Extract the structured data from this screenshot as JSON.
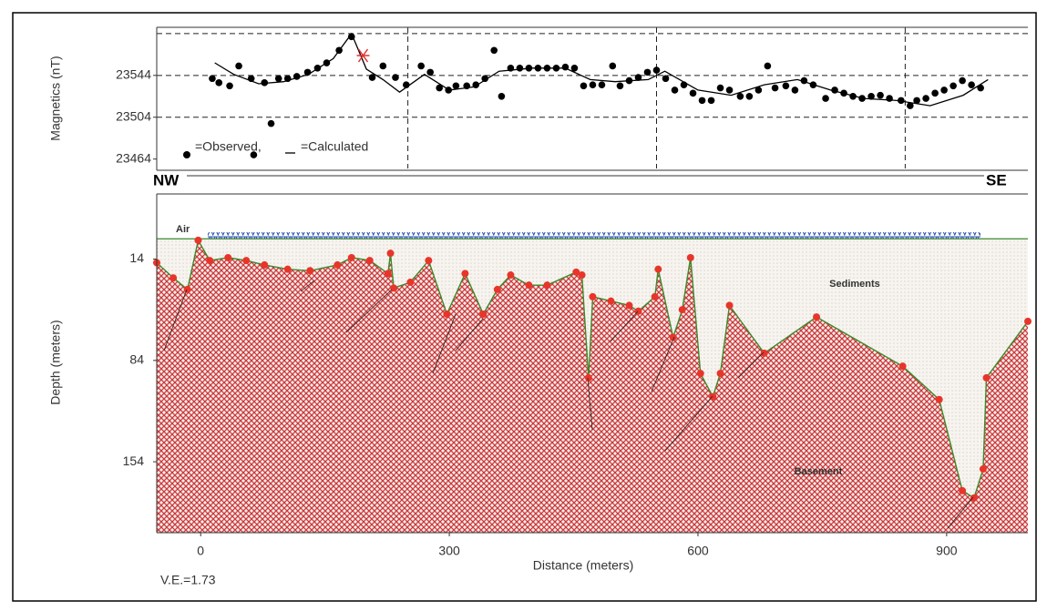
{
  "chart_data": [
    {
      "type": "scatter",
      "ylabel": "Magnetics (nT)",
      "xlim": [
        -53,
        998
      ],
      "ylim": [
        23455,
        23590
      ],
      "yticks": [
        23464,
        23504,
        23544
      ],
      "ygrid": [
        23504,
        23544,
        23584
      ],
      "xgrid": [
        250,
        550,
        850
      ],
      "series": [
        {
          "name": "=Observed,",
          "color": "#000000",
          "marker": "dot",
          "x": [
            14,
            22,
            35,
            46,
            61,
            64,
            77,
            85,
            94,
            105,
            116,
            129,
            141,
            152,
            167,
            182,
            207,
            220,
            235,
            248,
            266,
            277,
            288,
            299,
            308,
            321,
            332,
            343,
            354,
            363,
            374,
            385,
            396,
            407,
            418,
            429,
            440,
            451,
            462,
            473,
            484,
            497,
            506,
            517,
            528,
            539,
            550,
            561,
            572,
            583,
            594,
            605,
            616,
            627,
            638,
            651,
            662,
            673,
            684,
            693,
            706,
            717,
            728,
            739,
            754,
            765,
            776,
            787,
            798,
            809,
            820,
            831,
            845,
            856,
            864,
            875,
            886,
            897,
            908,
            919,
            930,
            941
          ],
          "values": [
            23541,
            23537,
            23534,
            23553,
            23541,
            23468,
            23537,
            23498,
            23541,
            23541,
            23543,
            23547,
            23551,
            23556,
            23568,
            23581,
            23542,
            23553,
            23542,
            23535,
            23553,
            23547,
            23532,
            23530,
            23534,
            23534,
            23535,
            23541,
            23568,
            23524,
            23551,
            23551,
            23551,
            23551,
            23551,
            23551,
            23552,
            23551,
            23534,
            23535,
            23535,
            23553,
            23534,
            23539,
            23542,
            23547,
            23549,
            23541,
            23530,
            23535,
            23527,
            23520,
            23520,
            23532,
            23530,
            23524,
            23524,
            23530,
            23553,
            23532,
            23534,
            23530,
            23539,
            23535,
            23522,
            23530,
            23527,
            23524,
            23522,
            23524,
            23525,
            23522,
            23520,
            23515,
            23520,
            23522,
            23527,
            23530,
            23534,
            23539,
            23535,
            23532
          ]
        },
        {
          "name": "=Calculated",
          "color": "#000000",
          "marker": "line",
          "x": [
            17,
            40,
            70,
            100,
            130,
            160,
            182,
            200,
            220,
            240,
            270,
            300,
            330,
            360,
            400,
            440,
            470,
            500,
            540,
            560,
            600,
            640,
            680,
            720,
            760,
            800,
            840,
            880,
            920,
            950
          ],
          "values": [
            23556,
            23545,
            23536,
            23538,
            23545,
            23560,
            23584,
            23550,
            23540,
            23528,
            23545,
            23530,
            23533,
            23548,
            23551,
            23551,
            23540,
            23538,
            23540,
            23548,
            23530,
            23525,
            23535,
            23540,
            23530,
            23522,
            23520,
            23515,
            23525,
            23540
          ]
        }
      ],
      "marker": {
        "x": 196,
        "value": 23563,
        "color": "#e03030"
      }
    },
    {
      "type": "profile",
      "xlabel": "Distance (meters)",
      "ylabel": "Depth (meters)",
      "xlim": [
        -53,
        998
      ],
      "ylim": [
        -31,
        203
      ],
      "invert_y": true,
      "xticks": [
        0,
        300,
        600,
        900
      ],
      "yticks": [
        14,
        84,
        154
      ],
      "surface_depth": 0,
      "color": "#e8352a",
      "line_color": "#3a8a2a",
      "x": [
        -53,
        -33,
        -16,
        -3,
        11,
        33,
        55,
        77,
        105,
        132,
        165,
        182,
        204,
        226,
        229,
        233,
        253,
        275,
        297,
        319,
        341,
        358,
        374,
        396,
        418,
        453,
        460,
        468,
        473,
        495,
        517,
        528,
        548,
        552,
        570,
        581,
        591,
        603,
        618,
        627,
        638,
        680,
        743,
        847,
        891,
        919,
        933,
        944,
        948,
        998
      ],
      "values": [
        16.5,
        27,
        35,
        1,
        15,
        13,
        15,
        18,
        21,
        22,
        18,
        13,
        15,
        24,
        10,
        34,
        30,
        15,
        52,
        24,
        52,
        35,
        25,
        32,
        32,
        23,
        25,
        96,
        40,
        43,
        46,
        50,
        40,
        21,
        68,
        49,
        13,
        93,
        109,
        93,
        46,
        79,
        54,
        88,
        111,
        174,
        179,
        159,
        96,
        57
      ],
      "annotations": {
        "left": "NW",
        "right": "SE",
        "air": "Air",
        "sediments": "Sediments",
        "basement": "Basement",
        "ve": "V.E.=1.73"
      }
    }
  ]
}
